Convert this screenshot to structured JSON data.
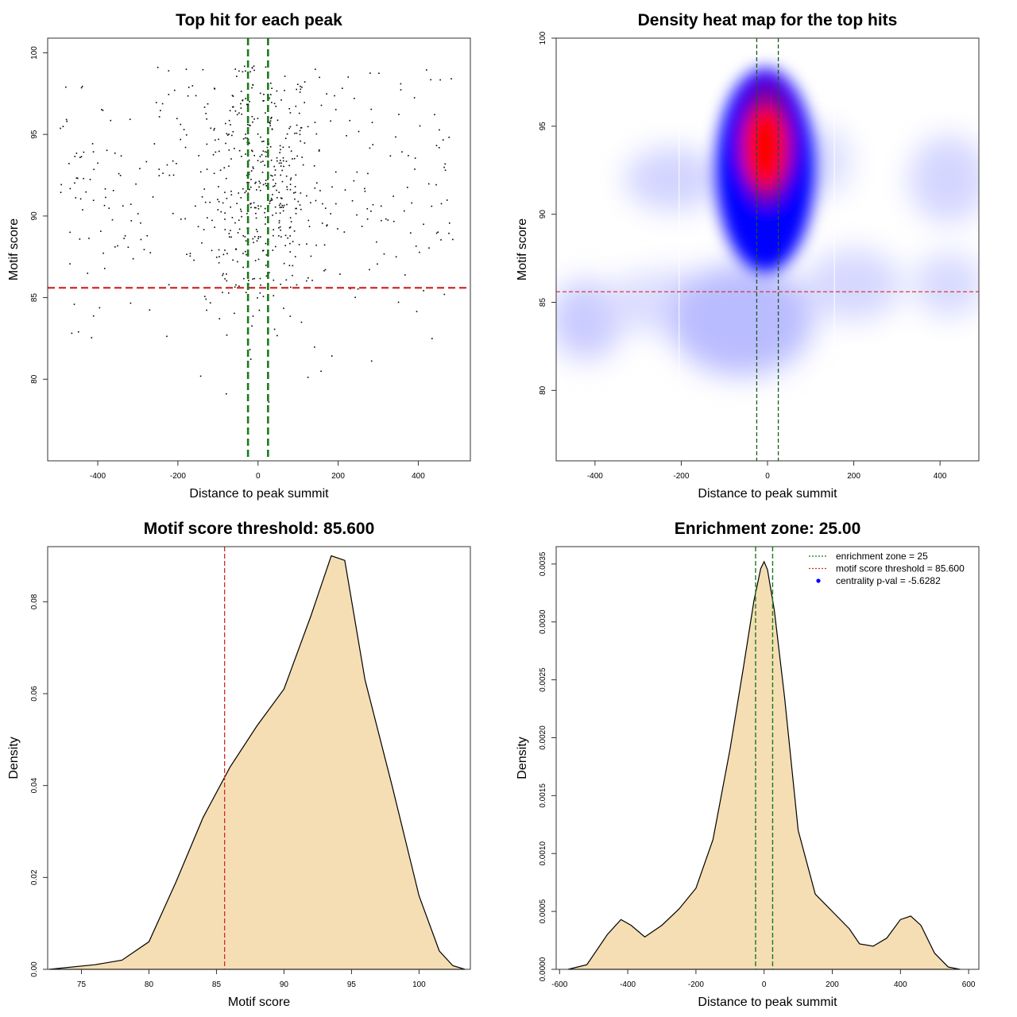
{
  "chart_data": [
    {
      "type": "scatter",
      "title": "Top hit for each peak",
      "xlabel": "Distance to peak summit",
      "ylabel": "Motif score",
      "xlim": [
        -525,
        530
      ],
      "ylim": [
        75,
        100.9
      ],
      "xticks": [
        -400,
        -200,
        0,
        200,
        400
      ],
      "yticks": [
        80,
        85,
        90,
        95,
        100
      ],
      "threshold_y": 85.6,
      "enrichment_zone": [
        -25,
        25
      ],
      "point_color": "#000000",
      "threshold_color": "#d62728",
      "zone_color": "#1a7a1a",
      "approx_point_count": 700,
      "points_note": ""
    },
    {
      "type": "heatmap",
      "title": "Density heat map for the top hits",
      "xlabel": "Distance to peak summit",
      "ylabel": "Motif score",
      "xlim": [
        -490,
        490
      ],
      "ylim": [
        76,
        100
      ],
      "xticks": [
        -400,
        -200,
        0,
        200,
        400
      ],
      "yticks": [
        80,
        85,
        90,
        95,
        100
      ],
      "threshold_y": 85.6,
      "enrichment_zone": [
        -25,
        25
      ],
      "colormap": [
        "#ffffff",
        "#0000ff",
        "#ff0000"
      ],
      "peak": {
        "x": -5,
        "y": 93.8
      }
    },
    {
      "type": "area",
      "title": "Motif score threshold: 85.600",
      "xlabel": "Motif score",
      "ylabel": "Density",
      "xlim": [
        72.5,
        103.8
      ],
      "ylim": [
        0,
        0.092
      ],
      "xticks": [
        75,
        80,
        85,
        90,
        95,
        100
      ],
      "yticks": [
        0.0,
        0.02,
        0.04,
        0.06,
        0.08
      ],
      "ytick_labels": [
        "0.00",
        "0.02",
        "0.04",
        "0.06",
        "0.08"
      ],
      "threshold_x": 85.6,
      "fill_color": "#f5deb3",
      "threshold_color": "#d62728",
      "x": [
        72.6,
        76,
        78,
        80,
        82,
        84,
        86,
        88,
        90,
        92,
        93.5,
        94.5,
        96,
        98,
        100,
        101.5,
        102.5,
        103.4
      ],
      "y": [
        0.0,
        0.001,
        0.002,
        0.006,
        0.019,
        0.033,
        0.044,
        0.053,
        0.061,
        0.077,
        0.09,
        0.089,
        0.063,
        0.04,
        0.016,
        0.004,
        0.0008,
        0.0
      ]
    },
    {
      "type": "area",
      "title": "Enrichment zone: 25.00",
      "xlabel": "Distance to peak summit",
      "ylabel": "Density",
      "xlim": [
        -610,
        630
      ],
      "ylim": [
        0,
        0.00365
      ],
      "xticks": [
        -600,
        -400,
        -200,
        0,
        200,
        400,
        600
      ],
      "yticks": [
        0,
        0.0005,
        0.001,
        0.0015,
        0.002,
        0.0025,
        0.003,
        0.0035
      ],
      "ytick_labels": [
        "0.0000",
        "0.0005",
        "0.0010",
        "0.0015",
        "0.0020",
        "0.0025",
        "0.0030",
        "0.0035"
      ],
      "enrichment_zone": [
        -25,
        25
      ],
      "fill_color": "#f5deb3",
      "zone_color": "#1a7a1a",
      "x": [
        -575,
        -520,
        -460,
        -420,
        -390,
        -350,
        -300,
        -250,
        -200,
        -150,
        -100,
        -60,
        -30,
        -10,
        0,
        10,
        30,
        60,
        100,
        150,
        200,
        250,
        280,
        320,
        360,
        400,
        430,
        460,
        500,
        540,
        575
      ],
      "y": [
        0.0,
        4e-05,
        0.0003,
        0.00043,
        0.00038,
        0.00028,
        0.00038,
        0.00052,
        0.0007,
        0.00112,
        0.0019,
        0.00262,
        0.00318,
        0.00346,
        0.00352,
        0.00345,
        0.0031,
        0.00235,
        0.0012,
        0.00065,
        0.0005,
        0.00035,
        0.00022,
        0.0002,
        0.00027,
        0.00043,
        0.00046,
        0.00038,
        0.00014,
        2e-05,
        0.0
      ],
      "legend": [
        {
          "label": "enrichment zone = 25",
          "style": "dotted-line",
          "color": "#1a7a1a"
        },
        {
          "label": "motif score threshold = 85.600",
          "style": "dotted-line",
          "color": "#d62728"
        },
        {
          "label": "centrality p-val = -5.6282",
          "style": "dot",
          "color": "#0000ff"
        }
      ],
      "legend_position": "top-right"
    }
  ]
}
